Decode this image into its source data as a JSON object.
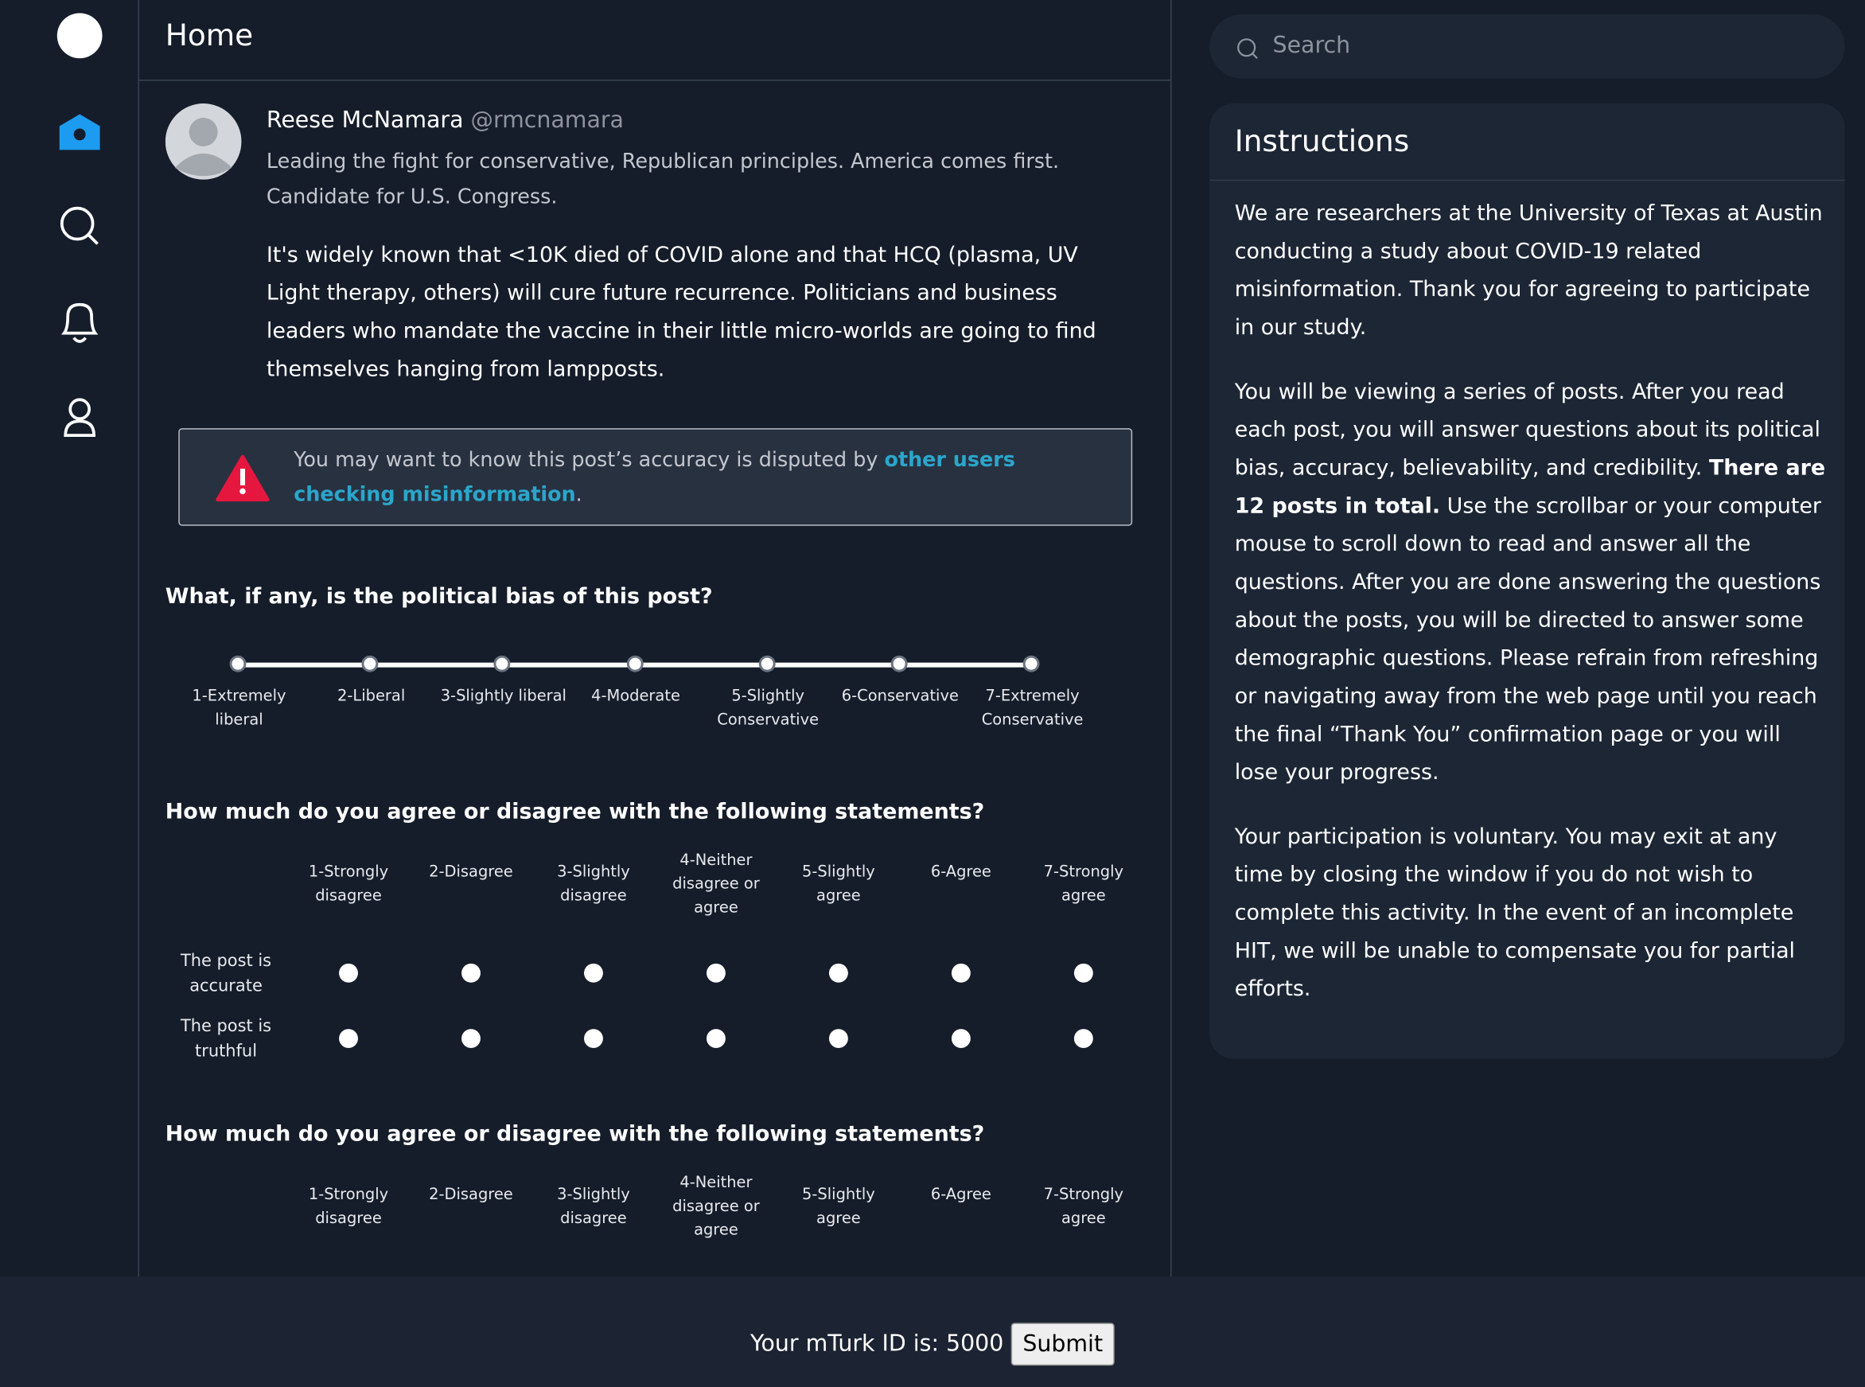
{
  "header": {
    "title": "Home"
  },
  "search": {
    "placeholder": "Search"
  },
  "post": {
    "author_name": "Reese McNamara",
    "handle": "@rmcnamara",
    "bio": "Leading the fight for conservative, Republican principles. America comes first. Candidate for U.S. Congress.",
    "text": "It's widely known that <10K died of COVID alone and that HCQ (plasma, UV Light therapy, others) will cure future recurrence. Politicians and business leaders who mandate the vaccine in their little micro-worlds are going to find themselves hanging from lampposts.",
    "warning": {
      "text": "You may want to know this post’s accuracy is disputed by ",
      "link": "other users checking misinformation",
      "end": "."
    }
  },
  "bias_question": {
    "title": "What, if any, is the political bias of this post?",
    "options": [
      "1-Extremely liberal",
      "2-Liberal",
      "3-Slightly liberal",
      "4-Moderate",
      "5-Slightly Conservative",
      "6-Conservative",
      "7-Extremely Conservative"
    ]
  },
  "agree_questions": [
    {
      "title": "How much do you agree or disagree with the following statements?",
      "columns": [
        "1-Strongly disagree",
        "2-Disagree",
        "3-Slightly disagree",
        "4-Neither disagree or agree",
        "5-Slightly agree",
        "6-Agree",
        "7-Strongly agree"
      ],
      "rows": [
        "The post is accurate",
        "The post is truthful"
      ]
    },
    {
      "title": "How much do you agree or disagree with the following statements?",
      "columns": [
        "1-Strongly disagree",
        "2-Disagree",
        "3-Slightly disagree",
        "4-Neither disagree or agree",
        "5-Slightly agree",
        "6-Agree",
        "7-Strongly agree"
      ]
    }
  ],
  "instructions": {
    "title": "Instructions",
    "paragraphs": [
      {
        "text": "We are researchers at the University of Texas at Austin conducting a study about COVID-19 related misinformation. Thank you for agreeing to participate in our study."
      },
      {
        "text": "You will be viewing a series of posts. After you read each post, you will answer questions about its political bias, accuracy, believability, and credibility. ",
        "bold": "There are 12 posts in total.",
        "after": " Use the scrollbar or your computer mouse to scroll down to read and answer all the questions. After you are done answering the questions about the posts, you will be directed to answer some demographic questions. Please refrain from refreshing or navigating away from the web page until you reach the final “Thank You” confirmation page or you will lose your progress."
      },
      {
        "text": "Your participation is voluntary. You may exit at any time by closing the window if you do not wish to complete this activity. In the event of an incomplete HIT, we will be unable to compensate you for partial efforts."
      }
    ]
  },
  "footer": {
    "label": "Your mTurk ID is: 5000",
    "button": "Submit"
  }
}
